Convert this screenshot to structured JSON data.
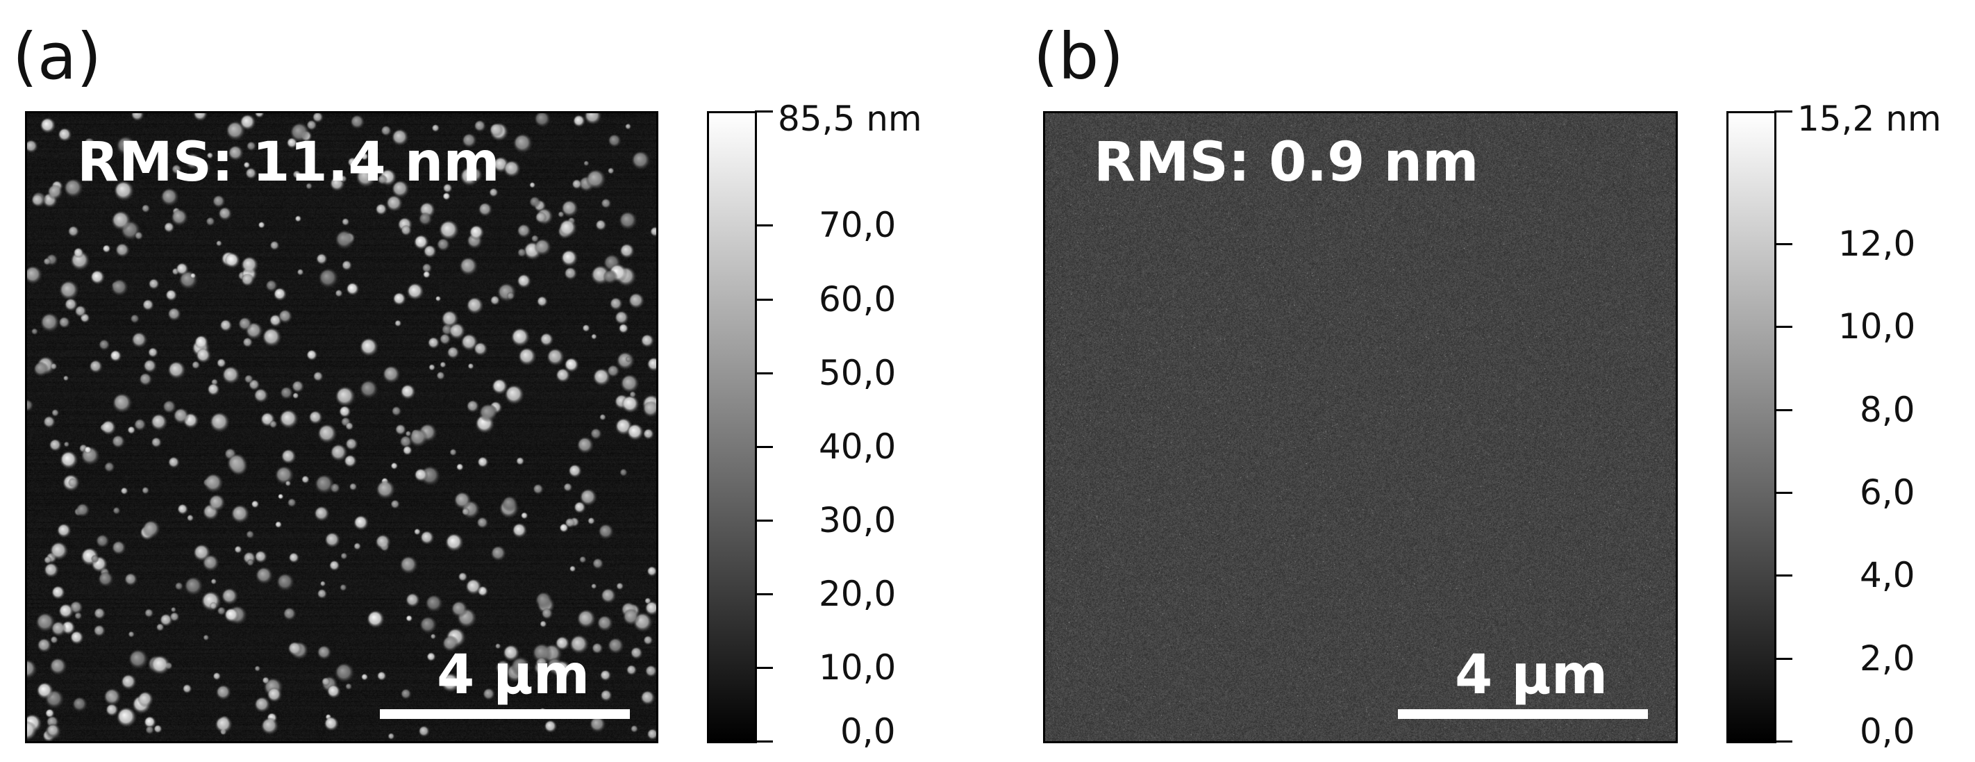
{
  "panels": [
    {
      "label": "(a)",
      "rms": "RMS: 11.4 nm",
      "scalebar": "4 µm",
      "background_color": "#161616",
      "colorbar_ticks": [
        {
          "value": 85.5,
          "label": "85,5 nm"
        },
        {
          "value": 70.0,
          "label": "70,0"
        },
        {
          "value": 60.0,
          "label": "60,0"
        },
        {
          "value": 50.0,
          "label": "50,0"
        },
        {
          "value": 40.0,
          "label": "40,0"
        },
        {
          "value": 30.0,
          "label": "30,0"
        },
        {
          "value": 20.0,
          "label": "20,0"
        },
        {
          "value": 10.0,
          "label": "10,0"
        },
        {
          "value": 0.0,
          "label": "0,0"
        }
      ],
      "colorbar_range": [
        0.0,
        85.5
      ]
    },
    {
      "label": "(b)",
      "rms": "RMS: 0.9 nm",
      "scalebar": "4 µm",
      "background_color": "#444444",
      "colorbar_ticks": [
        {
          "value": 15.2,
          "label": "15,2 nm"
        },
        {
          "value": 12.0,
          "label": "12,0"
        },
        {
          "value": 10.0,
          "label": "10,0"
        },
        {
          "value": 8.0,
          "label": "8,0"
        },
        {
          "value": 6.0,
          "label": "6,0"
        },
        {
          "value": 4.0,
          "label": "4,0"
        },
        {
          "value": 2.0,
          "label": "2,0"
        },
        {
          "value": 0.0,
          "label": "0,0"
        }
      ],
      "colorbar_range": [
        0.0,
        15.2
      ]
    }
  ]
}
